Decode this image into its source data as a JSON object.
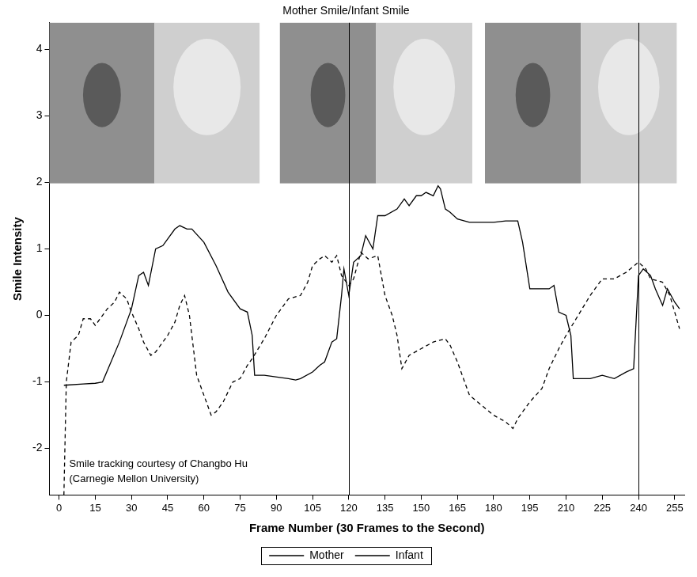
{
  "chart_data": {
    "type": "line",
    "title": "Mother Smile/Infant Smile",
    "x_label": "Frame Number (30 Frames to the Second)",
    "y_label": "Smile Intensity",
    "annotation": [
      "Smile tracking courtesy of Changbo Hu",
      "(Carnegie Mellon University)"
    ],
    "vertical_lines": [
      120,
      240
    ],
    "xlim": [
      -4,
      259
    ],
    "xticks": [
      0,
      15,
      30,
      45,
      60,
      75,
      90,
      105,
      120,
      135,
      150,
      165,
      180,
      195,
      210,
      225,
      240,
      255
    ],
    "ylim": [
      -2.7,
      4.4
    ],
    "yticks": [
      -2,
      -1,
      0,
      1,
      2,
      3,
      4
    ],
    "grid": false,
    "legend": "bottom",
    "series": [
      {
        "name": "Mother",
        "color": "#000000",
        "line_style": "dashed",
        "x": [
          2,
          3,
          5,
          8,
          10,
          13,
          15,
          18,
          20,
          23,
          25,
          28,
          30,
          33,
          35,
          38,
          40,
          45,
          48,
          50,
          52,
          54,
          57,
          60,
          63,
          65,
          68,
          72,
          75,
          78,
          80,
          85,
          90,
          95,
          100,
          103,
          105,
          108,
          110,
          113,
          115,
          117,
          120,
          122,
          125,
          128,
          132,
          135,
          138,
          140,
          142,
          145,
          150,
          155,
          160,
          162,
          165,
          170,
          175,
          180,
          185,
          188,
          190,
          195,
          200,
          203,
          207,
          210,
          215,
          220,
          225,
          230,
          235,
          240,
          243,
          245,
          250,
          253,
          257
        ],
        "values": [
          -2.7,
          -1.0,
          -0.4,
          -0.3,
          -0.05,
          -0.05,
          -0.15,
          0.0,
          0.1,
          0.2,
          0.35,
          0.25,
          0.05,
          -0.2,
          -0.4,
          -0.6,
          -0.55,
          -0.3,
          -0.1,
          0.15,
          0.3,
          0.0,
          -0.9,
          -1.2,
          -1.5,
          -1.45,
          -1.3,
          -1.0,
          -0.95,
          -0.75,
          -0.65,
          -0.35,
          0.0,
          0.25,
          0.3,
          0.5,
          0.75,
          0.85,
          0.9,
          0.8,
          0.9,
          0.6,
          0.45,
          0.55,
          0.95,
          0.85,
          0.9,
          0.3,
          0.0,
          -0.3,
          -0.8,
          -0.6,
          -0.5,
          -0.4,
          -0.35,
          -0.45,
          -0.7,
          -1.2,
          -1.35,
          -1.5,
          -1.6,
          -1.7,
          -1.55,
          -1.3,
          -1.1,
          -0.8,
          -0.5,
          -0.3,
          0.0,
          0.3,
          0.55,
          0.55,
          0.65,
          0.8,
          0.7,
          0.55,
          0.5,
          0.3,
          -0.2
        ]
      },
      {
        "name": "Infant",
        "color": "#000000",
        "line_style": "solid",
        "x": [
          2,
          10,
          15,
          18,
          25,
          30,
          33,
          35,
          37,
          40,
          43,
          45,
          48,
          50,
          53,
          55,
          60,
          65,
          70,
          75,
          78,
          80,
          81,
          85,
          95,
          98,
          100,
          105,
          108,
          110,
          113,
          115,
          117,
          118,
          120,
          122,
          125,
          127,
          130,
          132,
          135,
          140,
          143,
          145,
          148,
          150,
          152,
          155,
          157,
          158,
          160,
          162,
          165,
          170,
          175,
          180,
          185,
          190,
          192,
          195,
          200,
          203,
          205,
          207,
          210,
          212,
          213,
          215,
          220,
          225,
          230,
          235,
          238,
          240,
          242,
          245,
          247,
          250,
          252,
          255,
          257
        ],
        "values": [
          -1.05,
          -1.03,
          -1.02,
          -1.0,
          -0.4,
          0.1,
          0.6,
          0.65,
          0.45,
          1.0,
          1.05,
          1.15,
          1.3,
          1.35,
          1.3,
          1.3,
          1.1,
          0.75,
          0.35,
          0.1,
          0.05,
          -0.3,
          -0.9,
          -0.9,
          -0.95,
          -0.97,
          -0.95,
          -0.85,
          -0.75,
          -0.7,
          -0.4,
          -0.35,
          0.3,
          0.7,
          0.3,
          0.8,
          0.9,
          1.2,
          1.0,
          1.5,
          1.5,
          1.6,
          1.75,
          1.65,
          1.8,
          1.8,
          1.85,
          1.8,
          1.95,
          1.9,
          1.6,
          1.55,
          1.45,
          1.4,
          1.4,
          1.4,
          1.42,
          1.42,
          1.1,
          0.4,
          0.4,
          0.4,
          0.45,
          0.05,
          0.0,
          -0.3,
          -0.95,
          -0.95,
          -0.95,
          -0.9,
          -0.95,
          -0.85,
          -0.8,
          0.6,
          0.7,
          0.6,
          0.4,
          0.15,
          0.4,
          0.2,
          0.1
        ]
      }
    ]
  }
}
